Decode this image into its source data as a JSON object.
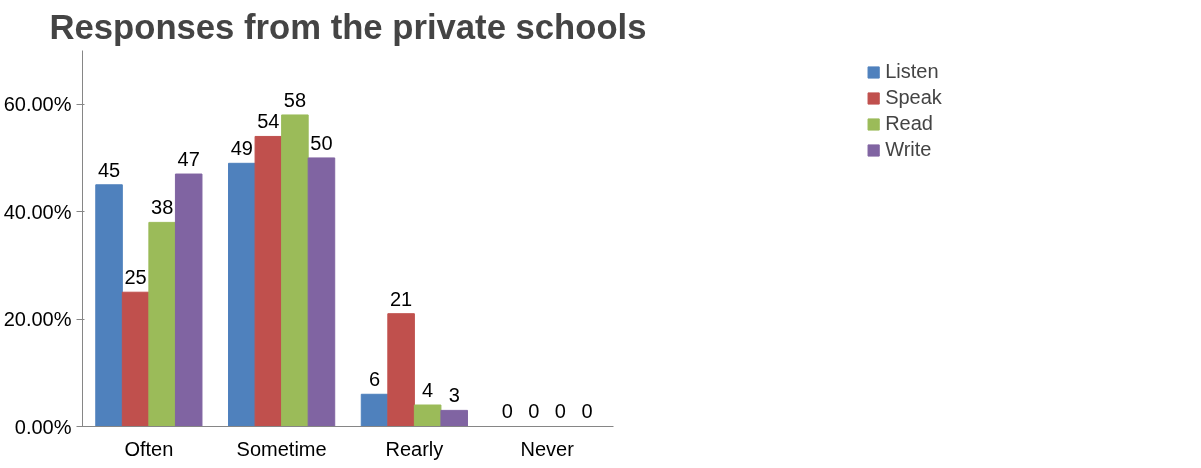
{
  "chart_data": {
    "type": "bar",
    "title": "Responses from the private schools",
    "categories": [
      "Often",
      "Sometime",
      "Rearly",
      "Never"
    ],
    "series": [
      {
        "name": "Listen",
        "color": "#4f81bd",
        "values": [
          45,
          49,
          6,
          0
        ]
      },
      {
        "name": "Speak",
        "color": "#c0504d",
        "values": [
          25,
          54,
          21,
          0
        ]
      },
      {
        "name": "Read",
        "color": "#9bbb59",
        "values": [
          38,
          58,
          4,
          0
        ]
      },
      {
        "name": "Write",
        "color": "#8064a2",
        "values": [
          47,
          50,
          3,
          0
        ]
      }
    ],
    "ylim": [
      0,
      70
    ],
    "yticks": [
      {
        "value": 0,
        "label": "0.00%"
      },
      {
        "value": 20,
        "label": "20.00%"
      },
      {
        "value": 40,
        "label": "40.00%"
      },
      {
        "value": 60,
        "label": "60.00%"
      }
    ],
    "data_labels": true,
    "grid": false,
    "legend": "right"
  }
}
